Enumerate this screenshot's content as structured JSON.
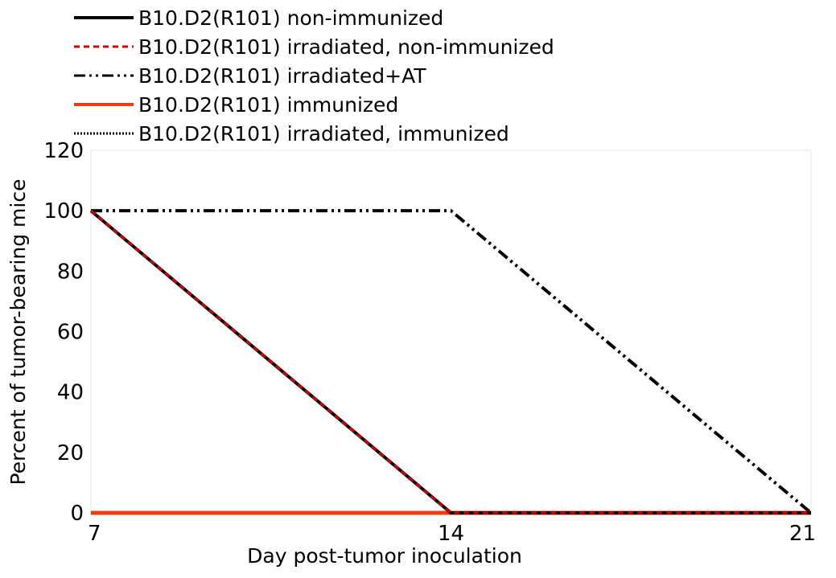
{
  "chart_data": {
    "type": "line",
    "title": "",
    "xlabel": "Day post-tumor inoculation",
    "ylabel": "Percent of tumor-bearing mice",
    "x": [
      7,
      14,
      21
    ],
    "x_ticks": [
      "7",
      "14",
      "21"
    ],
    "xlim": [
      7,
      21
    ],
    "ylim": [
      0,
      120
    ],
    "y_ticks": [
      "0",
      "20",
      "40",
      "60",
      "80",
      "100",
      "120"
    ],
    "grid": false,
    "legend_position": "top-left, above plot",
    "series": [
      {
        "name": "B10.D2(R101) non-immunized",
        "values": [
          100,
          0,
          0
        ],
        "color": "#000000",
        "style": "solid"
      },
      {
        "name": "B10.D2(R101) irradiated, non-immunized",
        "values": [
          100,
          0,
          0
        ],
        "color": "#d40000",
        "style": "dashed"
      },
      {
        "name": "B10.D2(R101) irradiated+AT",
        "values": [
          100,
          100,
          0
        ],
        "color": "#000000",
        "style": "dash-dot-dot"
      },
      {
        "name": "B10.D2(R101) immunized",
        "values": [
          0,
          0,
          0
        ],
        "color": "#f03c0f",
        "style": "solid"
      },
      {
        "name": "B10.D2(R101) irradiated, immunized",
        "values": [
          0,
          0,
          0
        ],
        "color": "#000000",
        "style": "dotted"
      }
    ]
  }
}
